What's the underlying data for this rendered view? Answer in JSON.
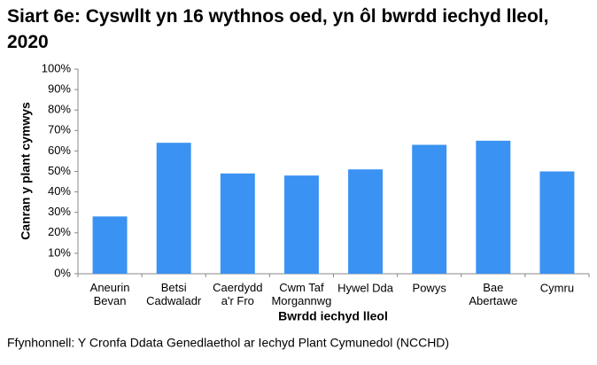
{
  "chart_data": {
    "type": "bar",
    "title": "Siart 6e: Cyswllt yn 16 wythnos oed, yn ôl bwrdd iechyd lleol, 2020",
    "y_label": "Canran y plant cymwys",
    "x_label": "Bwrdd iechyd lleol",
    "source": "Ffynhonnell: Y Cronfa Ddata Genedlaethol ar Iechyd Plant Cymunedol (NCCHD)",
    "categories": [
      "Aneurin\nBevan",
      "Betsi\nCadwaladr",
      "Caerdydd\na'r Fro",
      "Cwm Taf\nMorgannwg",
      "Hywel Dda",
      "Powys",
      "Bae\nAbertawe",
      "Cymru"
    ],
    "values": [
      28,
      64,
      49,
      48,
      51,
      63,
      65,
      50
    ],
    "color": "#3a92f2",
    "ylim": [
      0,
      100
    ],
    "yticks": [
      {
        "value": 0,
        "label": "0%"
      },
      {
        "value": 10,
        "label": "10%"
      },
      {
        "value": 20,
        "label": "20%"
      },
      {
        "value": 30,
        "label": "30%"
      },
      {
        "value": 40,
        "label": "40%"
      },
      {
        "value": 50,
        "label": "50%"
      },
      {
        "value": 60,
        "label": "60%"
      },
      {
        "value": 70,
        "label": "70%"
      },
      {
        "value": 80,
        "label": "80%"
      },
      {
        "value": 90,
        "label": "90%"
      },
      {
        "value": 100,
        "label": "100%"
      }
    ],
    "grid": false
  }
}
